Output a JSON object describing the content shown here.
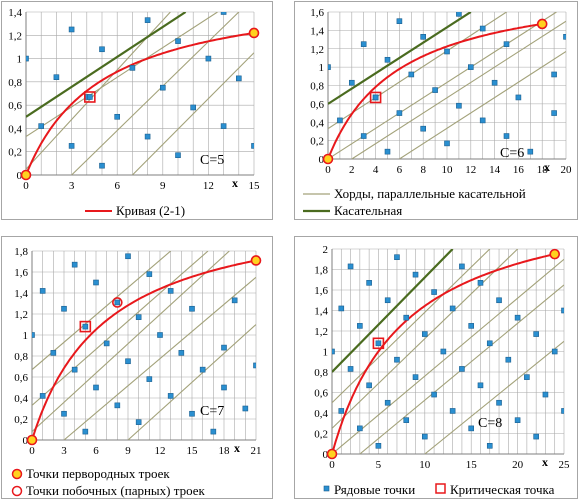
{
  "colors": {
    "curve": "#e8181c",
    "tangent": "#4a6b1f",
    "chord": "#a3a27a",
    "grid": "#a9a9a9",
    "point": "#2a8fd0",
    "point_edge": "#1c5f8f",
    "critical": "#e8181c",
    "primitive_fill": "#ffd21f",
    "primitive_edge": "#e8181c",
    "frame": "#a6a6a6"
  },
  "legends": {
    "curve": "Кривая (2-1)",
    "chords": "Хорды, параллельные касательной",
    "tangent": "Касательная",
    "primitive": "Точки первородных  троек",
    "side": "Точки побочных  (парных)  троек",
    "ordinary": "Рядовые точки",
    "critical": "Критическая точка"
  },
  "chart_data": [
    {
      "type": "scatter",
      "label": "C=5",
      "xlabel": "x",
      "xlim": [
        0,
        15
      ],
      "ylim": [
        0,
        1.4
      ],
      "xticks": [
        0,
        3,
        6,
        9,
        12,
        15
      ],
      "yticks": [
        0,
        0.2,
        0.4,
        0.6,
        0.8,
        1,
        1.2,
        1.4
      ],
      "tick_labels_x": [
        "0",
        "3",
        "6",
        "9",
        "12",
        "15"
      ],
      "tick_labels_y": [
        "0",
        "0,2",
        "0,4",
        "0,6",
        "0,8",
        "1",
        "1,2",
        "1,4"
      ],
      "curve_C": 5,
      "primitive_points": [
        [
          0,
          0
        ],
        [
          15,
          1.22
        ]
      ],
      "side_points": [],
      "critical_points": [
        [
          4.2,
          0.67
        ]
      ],
      "tangent": [
        [
          0,
          0.5
        ],
        [
          10.5,
          1.4
        ]
      ],
      "chords": [
        [
          [
            3,
            0
          ],
          [
            14,
            1.4
          ]
        ],
        [
          [
            0,
            0.33
          ],
          [
            12.6,
            1.4
          ]
        ],
        [
          [
            7,
            0
          ],
          [
            15,
            1.05
          ]
        ],
        [
          [
            0,
            0.05
          ],
          [
            9.5,
            1.4
          ]
        ]
      ],
      "ordinary_points": [
        [
          0,
          1
        ],
        [
          1,
          0.42
        ],
        [
          2,
          0.84
        ],
        [
          3,
          0.25
        ],
        [
          3,
          1.25
        ],
        [
          4,
          0.67
        ],
        [
          5,
          0.08
        ],
        [
          5,
          1.08
        ],
        [
          6,
          0.5
        ],
        [
          7,
          0.92
        ],
        [
          8,
          0.33
        ],
        [
          8,
          1.33
        ],
        [
          9,
          0.75
        ],
        [
          10,
          0.17
        ],
        [
          10,
          1.15
        ],
        [
          11,
          0.58
        ],
        [
          12,
          1.0
        ],
        [
          13,
          0.42
        ],
        [
          13,
          1.4
        ],
        [
          14,
          0.83
        ],
        [
          15,
          0.25
        ]
      ]
    },
    {
      "type": "scatter",
      "label": "C=6",
      "xlabel": "x",
      "xlim": [
        0,
        20
      ],
      "ylim": [
        0,
        1.6
      ],
      "xticks": [
        0,
        2,
        4,
        6,
        8,
        10,
        12,
        14,
        16,
        18,
        20
      ],
      "yticks": [
        0,
        0.2,
        0.4,
        0.6,
        0.8,
        1,
        1.2,
        1.4,
        1.6
      ],
      "tick_labels_x": [
        "0",
        "2",
        "4",
        "6",
        "8",
        "10",
        "12",
        "14",
        "16",
        "18",
        "20"
      ],
      "tick_labels_y": [
        "0",
        "0,2",
        "0,4",
        "0,6",
        "0,8",
        "1",
        "1,2",
        "1,4",
        "1,6"
      ],
      "curve_C": 6,
      "primitive_points": [
        [
          0,
          0
        ],
        [
          18,
          1.47
        ]
      ],
      "side_points": [],
      "critical_points": [
        [
          4,
          0.67
        ]
      ],
      "tangent": [
        [
          0,
          0.6
        ],
        [
          12,
          1.6
        ]
      ],
      "chords": [
        [
          [
            2,
            0
          ],
          [
            20,
            1.5
          ]
        ],
        [
          [
            0,
            0.33
          ],
          [
            15,
            1.6
          ]
        ],
        [
          [
            0,
            0
          ],
          [
            19.2,
            1.6
          ]
        ],
        [
          [
            6,
            0
          ],
          [
            20,
            1.17
          ]
        ]
      ],
      "ordinary_points": [
        [
          0,
          1
        ],
        [
          1,
          0.42
        ],
        [
          2,
          0.83
        ],
        [
          3,
          0.25
        ],
        [
          3,
          1.25
        ],
        [
          4,
          0.67
        ],
        [
          5,
          0.08
        ],
        [
          5,
          1.08
        ],
        [
          6,
          0.5
        ],
        [
          6,
          1.5
        ],
        [
          7,
          0.92
        ],
        [
          8,
          0.33
        ],
        [
          8,
          1.33
        ],
        [
          9,
          0.75
        ],
        [
          10,
          0.17
        ],
        [
          10,
          1.17
        ],
        [
          11,
          0.58
        ],
        [
          11,
          1.58
        ],
        [
          12,
          1
        ],
        [
          13,
          0.42
        ],
        [
          13,
          1.42
        ],
        [
          14,
          0.83
        ],
        [
          15,
          0.25
        ],
        [
          15,
          1.25
        ],
        [
          16,
          0.67
        ],
        [
          17,
          0.08
        ],
        [
          19,
          0.92
        ],
        [
          19,
          0.5
        ],
        [
          20,
          1.33
        ]
      ]
    },
    {
      "type": "scatter",
      "label": "C=7",
      "xlabel": "x",
      "xlim": [
        0,
        21
      ],
      "ylim": [
        0,
        1.8
      ],
      "xticks": [
        0,
        3,
        6,
        9,
        12,
        15,
        18,
        21
      ],
      "yticks": [
        0,
        0.2,
        0.4,
        0.6,
        0.8,
        1,
        1.2,
        1.4,
        1.6,
        1.8
      ],
      "tick_labels_x": [
        "0",
        "3",
        "6",
        "9",
        "12",
        "15",
        "18",
        "21"
      ],
      "tick_labels_y": [
        "0",
        "0,2",
        "0,4",
        "0,6",
        "0,8",
        "1",
        "1,2",
        "1,4",
        "1,6",
        "1,8"
      ],
      "curve_C": 7,
      "primitive_points": [
        [
          0,
          0
        ],
        [
          21,
          1.71
        ]
      ],
      "side_points": [
        [
          8,
          1.31
        ]
      ],
      "critical_points": [
        [
          5,
          1.08
        ]
      ],
      "tangent": [],
      "chords": [
        [
          [
            0,
            0.67
          ],
          [
            13,
            1.8
          ]
        ],
        [
          [
            0,
            0.08
          ],
          [
            18.5,
            1.8
          ]
        ],
        [
          [
            3,
            0
          ],
          [
            21,
            1.55
          ]
        ],
        [
          [
            9,
            0
          ],
          [
            21,
            1.1
          ]
        ],
        [
          [
            0,
            0.33
          ],
          [
            16.5,
            1.8
          ]
        ]
      ],
      "ordinary_points": [
        [
          0,
          1
        ],
        [
          1,
          0.42
        ],
        [
          1,
          1.42
        ],
        [
          2,
          0.83
        ],
        [
          3,
          0.25
        ],
        [
          3,
          1.25
        ],
        [
          4,
          0.67
        ],
        [
          4,
          1.67
        ],
        [
          5,
          0.08
        ],
        [
          6,
          0.5
        ],
        [
          6,
          1.5
        ],
        [
          7,
          0.92
        ],
        [
          8,
          0.33
        ],
        [
          9,
          0.75
        ],
        [
          9,
          1.75
        ],
        [
          10,
          0.17
        ],
        [
          10,
          1.17
        ],
        [
          11,
          0.58
        ],
        [
          11,
          1.58
        ],
        [
          12,
          1
        ],
        [
          13,
          0.42
        ],
        [
          13,
          1.42
        ],
        [
          14,
          0.83
        ],
        [
          15,
          0.25
        ],
        [
          15,
          1.25
        ],
        [
          16,
          0.67
        ],
        [
          17,
          0.08
        ],
        [
          18,
          0.5
        ],
        [
          18,
          0.88
        ],
        [
          19,
          1.33
        ],
        [
          20,
          0.3
        ],
        [
          21,
          0.71
        ]
      ]
    },
    {
      "type": "scatter",
      "label": "C=8",
      "xlabel": "x",
      "xlim": [
        0,
        25
      ],
      "ylim": [
        0,
        2
      ],
      "xticks": [
        0,
        5,
        10,
        15,
        20,
        25
      ],
      "yticks": [
        0,
        0.2,
        0.4,
        0.6,
        0.8,
        1,
        1.2,
        1.4,
        1.6,
        1.8,
        2
      ],
      "tick_labels_x": [
        "0",
        "5",
        "10",
        "15",
        "20",
        "25"
      ],
      "tick_labels_y": [
        "0",
        "0,2",
        "0,4",
        "0,6",
        "0,8",
        "1",
        "1,2",
        "1,4",
        "1,6",
        "1,8",
        "2"
      ],
      "curve_C": 8,
      "primitive_points": [
        [
          0,
          0
        ],
        [
          24,
          1.95
        ]
      ],
      "side_points": [],
      "critical_points": [
        [
          5,
          1.08
        ]
      ],
      "tangent": [
        [
          0,
          0.8
        ],
        [
          13,
          2
        ]
      ],
      "chords": [
        [
          [
            0,
            0
          ],
          [
            25,
            1.9
          ]
        ],
        [
          [
            0,
            0.5
          ],
          [
            17,
            2
          ]
        ],
        [
          [
            3,
            0
          ],
          [
            25,
            1.65
          ]
        ],
        [
          [
            10,
            0
          ],
          [
            25,
            1.1
          ]
        ],
        [
          [
            0,
            0.25
          ],
          [
            20,
            2
          ]
        ]
      ],
      "ordinary_points": [
        [
          0,
          1
        ],
        [
          1,
          0.42
        ],
        [
          1,
          1.42
        ],
        [
          2,
          0.83
        ],
        [
          2,
          1.83
        ],
        [
          3,
          0.25
        ],
        [
          3,
          1.25
        ],
        [
          4,
          0.67
        ],
        [
          4,
          1.67
        ],
        [
          5,
          0.08
        ],
        [
          6,
          0.5
        ],
        [
          6,
          1.5
        ],
        [
          7,
          0.92
        ],
        [
          7,
          1.92
        ],
        [
          8,
          0.33
        ],
        [
          8,
          1.33
        ],
        [
          9,
          0.75
        ],
        [
          9,
          1.75
        ],
        [
          10,
          0.17
        ],
        [
          10,
          1.17
        ],
        [
          11,
          0.58
        ],
        [
          11,
          1.58
        ],
        [
          12,
          1
        ],
        [
          13,
          0.42
        ],
        [
          13,
          1.42
        ],
        [
          14,
          0.83
        ],
        [
          14,
          1.83
        ],
        [
          15,
          0.25
        ],
        [
          15,
          1.25
        ],
        [
          16,
          0.67
        ],
        [
          16,
          1.67
        ],
        [
          17,
          0.08
        ],
        [
          17,
          1.08
        ],
        [
          18,
          0.5
        ],
        [
          18,
          1.5
        ],
        [
          19,
          0.92
        ],
        [
          20,
          0.33
        ],
        [
          20,
          1.33
        ],
        [
          21,
          0.75
        ],
        [
          22,
          0.17
        ],
        [
          22,
          1.17
        ],
        [
          23,
          0.58
        ],
        [
          24,
          1
        ],
        [
          25,
          0.42
        ],
        [
          25,
          1.4
        ]
      ]
    }
  ]
}
